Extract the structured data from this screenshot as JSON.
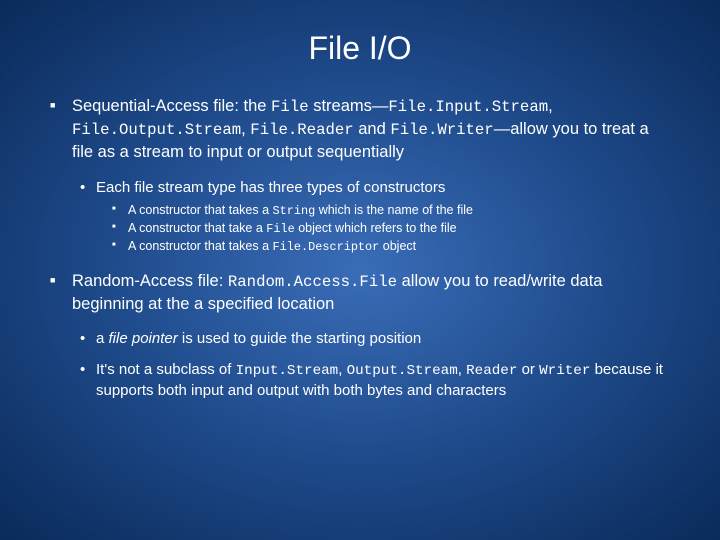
{
  "colors": {
    "background_center": "#3a6db8",
    "background_mid": "#1e4a8a",
    "background_edge": "#0a2a5a",
    "text": "#ffffff",
    "bullet": "#ffffff"
  },
  "typography": {
    "title_fontsize": 32,
    "title_family": "Arial",
    "body_family": "Verdana",
    "code_family": "Courier New",
    "level1_fontsize": 16.5,
    "level2_fontsize": 15,
    "level3_fontsize": 12.5
  },
  "title": "File I/O",
  "b1": {
    "p1": "Sequential-Access file: the ",
    "c1": "File",
    "p2": " streams—",
    "c2": "File.Input.Stream",
    "p3": ", ",
    "c3": "File.Output.Stream",
    "p4": ", ",
    "c4": "File.Reader",
    "p5": " and ",
    "c5": "File.Writer",
    "p6": "—allow you to treat a file as a stream to input or output sequentially"
  },
  "b1s1": "Each file stream type has three types of constructors",
  "b1s1a": {
    "p1": "A constructor that takes a ",
    "c1": "String",
    "p2": " which is the name of the file"
  },
  "b1s1b": {
    "p1": "A constructor that take a ",
    "c1": "File",
    "p2": " object which refers to the file"
  },
  "b1s1c": {
    "p1": "A constructor that takes a ",
    "c1": "File.Descriptor",
    "p2": " object"
  },
  "b2": {
    "p1": "Random-Access file: ",
    "c1": "Random.Access.File",
    "p2": " allow you to read/write data beginning at the a specified location"
  },
  "b2s1": {
    "p1": "a ",
    "i1": "file pointer",
    "p2": " is used to guide the starting position"
  },
  "b2s2": {
    "p1": "It's not a subclass of ",
    "c1": "Input.Stream",
    "p2": ", ",
    "c2": "Output.Stream",
    "p3": ", ",
    "c3": "Reader",
    "p4": " or ",
    "c4": "Writer",
    "p5": " because it supports both input and output with both bytes and characters"
  }
}
